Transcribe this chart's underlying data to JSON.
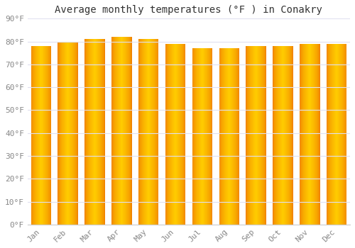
{
  "title": "Average monthly temperatures (°F ) in Conakry",
  "months": [
    "Jan",
    "Feb",
    "Mar",
    "Apr",
    "May",
    "Jun",
    "Jul",
    "Aug",
    "Sep",
    "Oct",
    "Nov",
    "Dec"
  ],
  "values": [
    78,
    80,
    81,
    82,
    81,
    79,
    77,
    77,
    78,
    78,
    79,
    79
  ],
  "ylim": [
    0,
    90
  ],
  "yticks": [
    0,
    10,
    20,
    30,
    40,
    50,
    60,
    70,
    80,
    90
  ],
  "bar_color_center": "#FFCC00",
  "bar_color_edge": "#F08000",
  "bar_outline_color": "#CC7700",
  "background_color": "#FFFFFF",
  "grid_color": "#E0E0F0",
  "tick_label_color": "#888888",
  "title_color": "#333333",
  "title_fontsize": 10,
  "tick_fontsize": 8,
  "bar_width": 0.75
}
